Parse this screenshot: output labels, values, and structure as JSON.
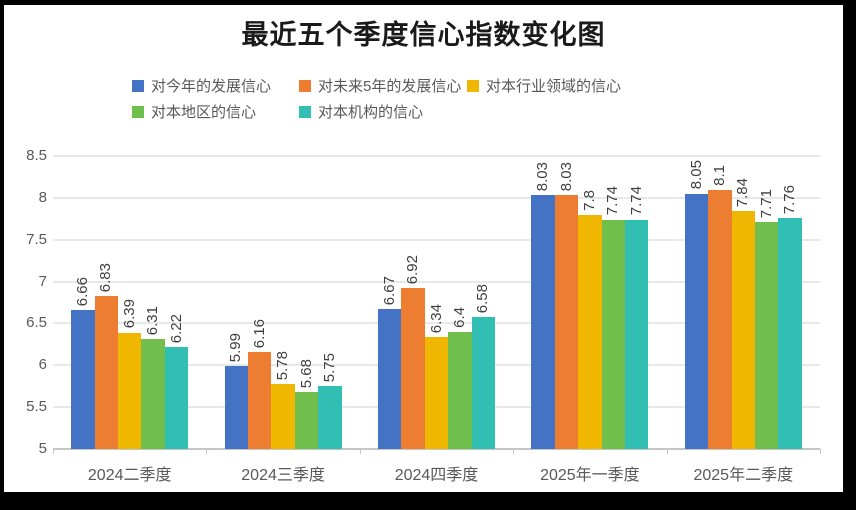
{
  "chart_data": {
    "type": "bar",
    "title": "最近五个季度信心指数变化图",
    "categories": [
      "2024二季度",
      "2024三季度",
      "2024四季度",
      "2025年一季度",
      "2025年二季度"
    ],
    "series": [
      {
        "name": "对今年的发展信心",
        "color": "#4472C4",
        "values": [
          6.66,
          5.99,
          6.67,
          8.03,
          8.05
        ]
      },
      {
        "name": "对未来5年的发展信心",
        "color": "#ED7D31",
        "values": [
          6.83,
          6.16,
          6.92,
          8.03,
          8.1
        ]
      },
      {
        "name": "对本行业领域的信心",
        "color": "#EFB700",
        "values": [
          6.39,
          5.78,
          6.34,
          7.8,
          7.84
        ]
      },
      {
        "name": "对本地区的信心",
        "color": "#70BE4B",
        "values": [
          6.31,
          5.68,
          6.4,
          7.74,
          7.71
        ]
      },
      {
        "name": "对本机构的信心",
        "color": "#31BFB3",
        "values": [
          6.22,
          5.75,
          6.58,
          7.74,
          7.76
        ]
      }
    ],
    "ylim": [
      5,
      8.5
    ],
    "ytick_step": 0.5,
    "ytick_labels": [
      "5",
      "5.5",
      "6",
      "6.5",
      "7",
      "7.5",
      "8",
      "8.5"
    ],
    "grid": true,
    "legend_position": "top",
    "data_labels": "rotated-vertical-above-bars"
  },
  "style": {
    "background": "#FFFFFF",
    "frame_color": "#000000",
    "grid_color": "#E7E9E9",
    "axis_color": "#C4C6C6",
    "tick_label_color": "#595959",
    "value_label_color": "#3F3F3F",
    "title_color": "#1A1A1A"
  }
}
